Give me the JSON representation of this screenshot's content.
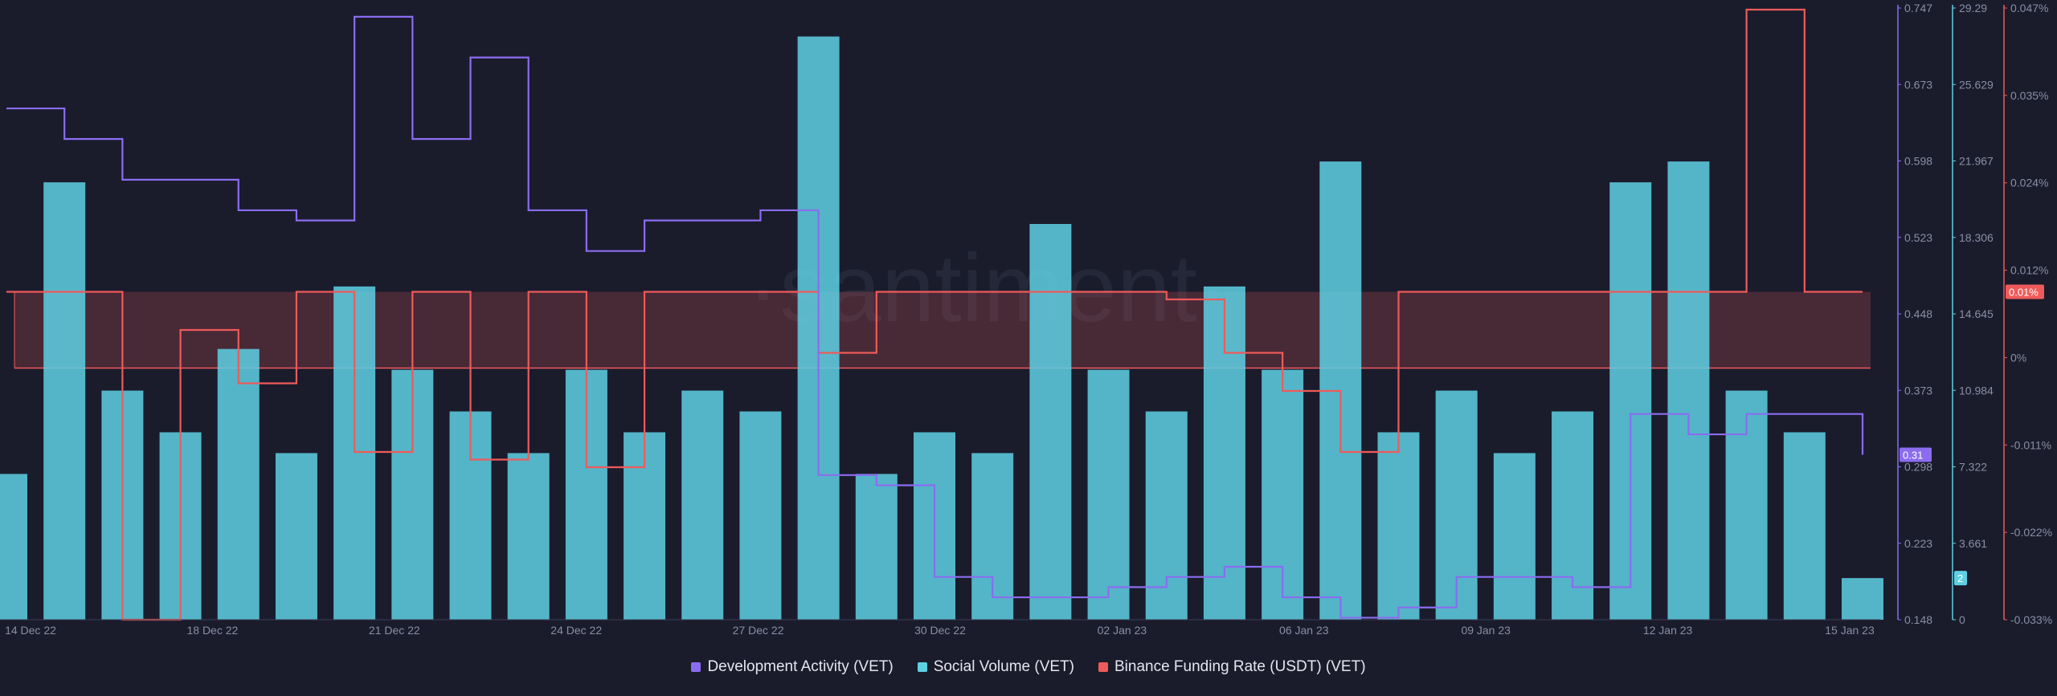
{
  "chart_data": {
    "type": "bar",
    "watermark": "·santiment·",
    "x_ticks": [
      "14 Dec 22",
      "18 Dec 22",
      "21 Dec 22",
      "24 Dec 22",
      "27 Dec 22",
      "30 Dec 22",
      "02 Jan 23",
      "06 Jan 23",
      "09 Jan 23",
      "12 Jan 23",
      "15 Jan 23"
    ],
    "x_range": [
      "2022-12-14",
      "2023-01-15"
    ],
    "axes": {
      "dev_activity": {
        "ticks": [
          "0.747",
          "0.673",
          "0.598",
          "0.523",
          "0.448",
          "0.373",
          "0.298",
          "0.223",
          "0.148"
        ],
        "range": [
          0.148,
          0.747
        ],
        "color": "#8b6cf0"
      },
      "social_volume": {
        "ticks": [
          "29.29",
          "25.629",
          "21.967",
          "18.306",
          "14.645",
          "10.984",
          "7.322",
          "3.661",
          "0"
        ],
        "range": [
          0,
          29.29
        ],
        "color": "#5fd0e4"
      },
      "funding_rate": {
        "ticks": [
          "0.047%",
          "0.035%",
          "0.024%",
          "0.012%",
          "0%",
          "-0.011%",
          "-0.022%",
          "-0.033%"
        ],
        "range": [
          -0.033,
          0.047
        ],
        "color": "#ef5a5a"
      }
    },
    "current_values": {
      "dev_activity": "0.31",
      "social_volume": "2",
      "funding_rate": "0.01%"
    },
    "series": [
      {
        "name": "Development Activity (VET)",
        "color": "#8b6cf0",
        "type": "line",
        "x": [
          "2022-12-14",
          "2022-12-15",
          "2022-12-16",
          "2022-12-17",
          "2022-12-18",
          "2022-12-19",
          "2022-12-20",
          "2022-12-21",
          "2022-12-22",
          "2022-12-23",
          "2022-12-24",
          "2022-12-25",
          "2022-12-26",
          "2022-12-27",
          "2022-12-28",
          "2022-12-29",
          "2022-12-30",
          "2022-12-31",
          "2023-01-01",
          "2023-01-02",
          "2023-01-03",
          "2023-01-04",
          "2023-01-05",
          "2023-01-06",
          "2023-01-07",
          "2023-01-08",
          "2023-01-09",
          "2023-01-10",
          "2023-01-11",
          "2023-01-12",
          "2023-01-13",
          "2023-01-14",
          "2023-01-15"
        ],
        "values": [
          0.65,
          0.62,
          0.58,
          0.58,
          0.55,
          0.54,
          0.74,
          0.62,
          0.7,
          0.55,
          0.51,
          0.54,
          0.54,
          0.55,
          0.29,
          0.28,
          0.19,
          0.17,
          0.17,
          0.18,
          0.19,
          0.2,
          0.17,
          0.15,
          0.16,
          0.19,
          0.19,
          0.18,
          0.35,
          0.33,
          0.35,
          0.35,
          0.31
        ]
      },
      {
        "name": "Social Volume (VET)",
        "color": "#5fd0e4",
        "type": "bar",
        "x": [
          "2022-12-14",
          "2022-12-15",
          "2022-12-16",
          "2022-12-17",
          "2022-12-18",
          "2022-12-19",
          "2022-12-20",
          "2022-12-21",
          "2022-12-22",
          "2022-12-23",
          "2022-12-24",
          "2022-12-25",
          "2022-12-26",
          "2022-12-27",
          "2022-12-28",
          "2022-12-29",
          "2022-12-30",
          "2022-12-31",
          "2023-01-01",
          "2023-01-02",
          "2023-01-03",
          "2023-01-04",
          "2023-01-05",
          "2023-01-06",
          "2023-01-07",
          "2023-01-08",
          "2023-01-09",
          "2023-01-10",
          "2023-01-11",
          "2023-01-12",
          "2023-01-13",
          "2023-01-14",
          "2023-01-15"
        ],
        "values": [
          7,
          21,
          11,
          9,
          13,
          8,
          16,
          12,
          10,
          8,
          12,
          9,
          11,
          10,
          28,
          7,
          9,
          8,
          19,
          12,
          10,
          16,
          12,
          22,
          9,
          11,
          8,
          10,
          21,
          22,
          11,
          9,
          2
        ]
      },
      {
        "name": "Binance Funding Rate (USDT) (VET)",
        "color": "#ef5a5a",
        "type": "line",
        "x": [
          "2022-12-14",
          "2022-12-15",
          "2022-12-16",
          "2022-12-17",
          "2022-12-18",
          "2022-12-19",
          "2022-12-20",
          "2022-12-21",
          "2022-12-22",
          "2022-12-23",
          "2022-12-24",
          "2022-12-25",
          "2022-12-26",
          "2022-12-27",
          "2022-12-28",
          "2022-12-29",
          "2022-12-30",
          "2022-12-31",
          "2023-01-01",
          "2023-01-02",
          "2023-01-03",
          "2023-01-04",
          "2023-01-05",
          "2023-01-06",
          "2023-01-07",
          "2023-01-08",
          "2023-01-09",
          "2023-01-10",
          "2023-01-11",
          "2023-01-12",
          "2023-01-13",
          "2023-01-14",
          "2023-01-15"
        ],
        "values": [
          0.01,
          0.01,
          -0.033,
          0.005,
          -0.002,
          0.01,
          -0.011,
          0.01,
          -0.012,
          0.01,
          -0.013,
          0.01,
          0.01,
          0.01,
          0.002,
          0.01,
          0.01,
          0.01,
          0.01,
          0.01,
          0.009,
          0.002,
          -0.003,
          -0.011,
          0.01,
          0.01,
          0.01,
          0.01,
          0.01,
          0.01,
          0.047,
          0.01,
          0.01
        ]
      }
    ]
  },
  "legend": [
    {
      "label": "Development Activity (VET)",
      "color": "#8b6cf0"
    },
    {
      "label": "Social Volume (VET)",
      "color": "#5fd0e4"
    },
    {
      "label": "Binance Funding Rate (USDT) (VET)",
      "color": "#ef5a5a"
    }
  ]
}
